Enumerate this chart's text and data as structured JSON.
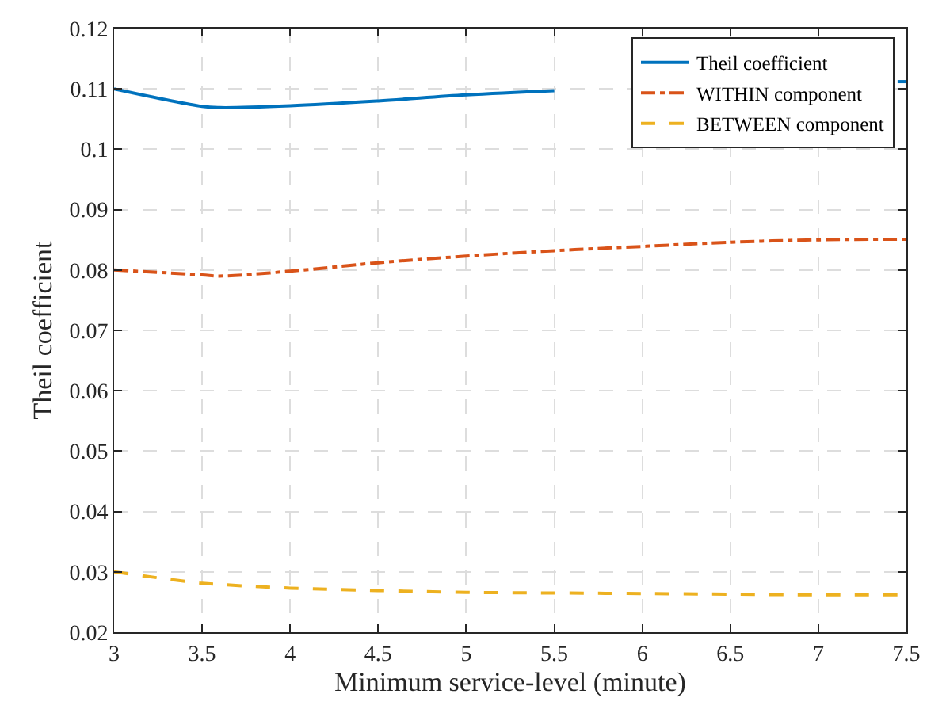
{
  "chart_data": {
    "type": "line",
    "xlabel": "Minimum service-level (minute)",
    "ylabel": "Theil coefficient",
    "x": [
      3,
      3.5,
      3.6,
      4,
      4.5,
      5,
      5.5,
      6,
      6.5,
      7,
      7.5
    ],
    "series": [
      {
        "name": "Theil coefficient",
        "color": "#0072bd",
        "line_style": "solid",
        "x": [
          3,
          3.5,
          3.6,
          4,
          4.5,
          5,
          5.5,
          6,
          7.45,
          7.5
        ],
        "values": [
          0.11,
          0.1071,
          0.1069,
          0.1072,
          0.108,
          0.109,
          0.1097,
          null,
          0.1112,
          0.1112
        ]
      },
      {
        "name": "WITHIN component",
        "color": "#d95319",
        "line_style": "dashdot",
        "values": [
          0.08,
          0.0792,
          0.079,
          0.0798,
          0.0812,
          0.0823,
          0.0832,
          0.0839,
          0.0846,
          0.085,
          0.0851
        ]
      },
      {
        "name": "BETWEEN component",
        "color": "#edb120",
        "line_style": "dashed",
        "values": [
          0.03,
          0.0281,
          0.0279,
          0.0273,
          0.0269,
          0.0266,
          0.0265,
          0.0264,
          0.0263,
          0.0262,
          0.0262
        ]
      }
    ],
    "xlim": [
      3,
      7.5
    ],
    "xticks": [
      3,
      3.5,
      4,
      4.5,
      5,
      5.5,
      6,
      6.5,
      7,
      7.5
    ],
    "ylim": [
      0.02,
      0.12
    ],
    "yticks": [
      0.02,
      0.03,
      0.04,
      0.05,
      0.06,
      0.07,
      0.08,
      0.09,
      0.1,
      0.11,
      0.12
    ],
    "grid": true,
    "legend": "top right",
    "marker": "none"
  }
}
